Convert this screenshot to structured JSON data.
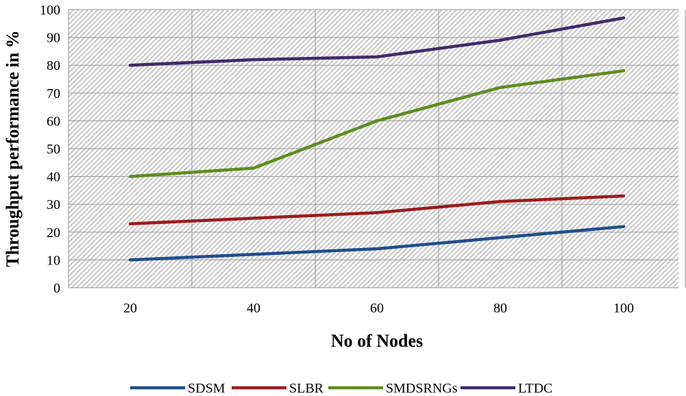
{
  "chart_data": {
    "type": "line",
    "title": "",
    "xlabel": "No of Nodes",
    "ylabel": "Throughput performance in %",
    "categories": [
      "20",
      "40",
      "60",
      "80",
      "100"
    ],
    "ylim": [
      0,
      100
    ],
    "yticks": [
      "0",
      "10",
      "20",
      "30",
      "40",
      "50",
      "60",
      "70",
      "80",
      "90",
      "100"
    ],
    "grid": true,
    "legend_position": "bottom",
    "series": [
      {
        "name": "SDSM",
        "color": "#1f4e8c",
        "values": [
          10,
          12,
          14,
          18,
          22
        ]
      },
      {
        "name": "SLBR",
        "color": "#9b1c1c",
        "values": [
          23,
          25,
          27,
          31,
          33
        ]
      },
      {
        "name": "SMDSRNGs",
        "color": "#5e8c1f",
        "values": [
          40,
          43,
          60,
          72,
          78
        ]
      },
      {
        "name": "LTDC",
        "color": "#3f2a6b",
        "values": [
          80,
          82,
          83,
          89,
          97
        ]
      }
    ]
  }
}
